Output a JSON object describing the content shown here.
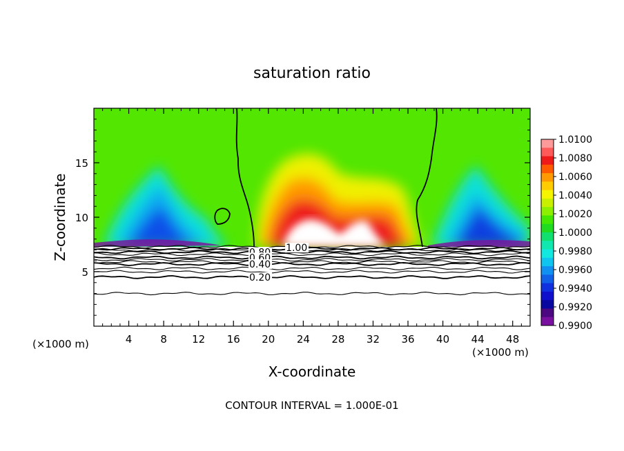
{
  "chart_data": {
    "type": "heatmap",
    "title": "saturation ratio",
    "xlabel": "X-coordinate",
    "ylabel": "Z-coordinate",
    "x_unit_left": "(×1000 m)",
    "x_unit_right": "(×1000 m)",
    "xlim": [
      0,
      50
    ],
    "ylim": [
      0,
      20
    ],
    "xticks": [
      4,
      8,
      12,
      16,
      20,
      24,
      28,
      32,
      36,
      40,
      44,
      48
    ],
    "yticks": [
      5,
      10,
      15
    ],
    "footer": "CONTOUR INTERVAL = 1.000E-01",
    "colorbar": {
      "labels": [
        "1.0100",
        "1.0080",
        "1.0060",
        "1.0040",
        "1.0020",
        "1.0000",
        "0.9980",
        "0.9960",
        "0.9940",
        "0.9920",
        "0.9900"
      ],
      "colors": [
        "#ff9a9a",
        "#ff5a5a",
        "#ee1a1a",
        "#ff5a00",
        "#ff9a00",
        "#ffcc00",
        "#f5f500",
        "#c8f000",
        "#8cf000",
        "#44e800",
        "#20dc20",
        "#10e070",
        "#10e8b0",
        "#10e8e0",
        "#10c4f0",
        "#1090f0",
        "#1060e8",
        "#1030e0",
        "#1010cc",
        "#0808a0",
        "#4c0880",
        "#7a10a0"
      ]
    },
    "contour_labels": [
      {
        "text": "1.00",
        "x": 22,
        "y": 7.2
      },
      {
        "text": "0.80",
        "x": 17.8,
        "y": 6.8
      },
      {
        "text": "0.60",
        "x": 17.8,
        "y": 6.3
      },
      {
        "text": "0.40",
        "x": 17.8,
        "y": 5.7
      },
      {
        "text": "0.20",
        "x": 17.8,
        "y": 4.5
      }
    ],
    "contour_lines": [
      {
        "value": 0.2,
        "z": 4.5
      },
      {
        "value": 0.4,
        "z": 5.7
      },
      {
        "value": 0.6,
        "z": 6.3
      },
      {
        "value": 0.8,
        "z": 6.8
      },
      {
        "value": 1.0,
        "z": 7.1
      },
      {
        "value": 0.0,
        "z": 3.0
      }
    ]
  }
}
